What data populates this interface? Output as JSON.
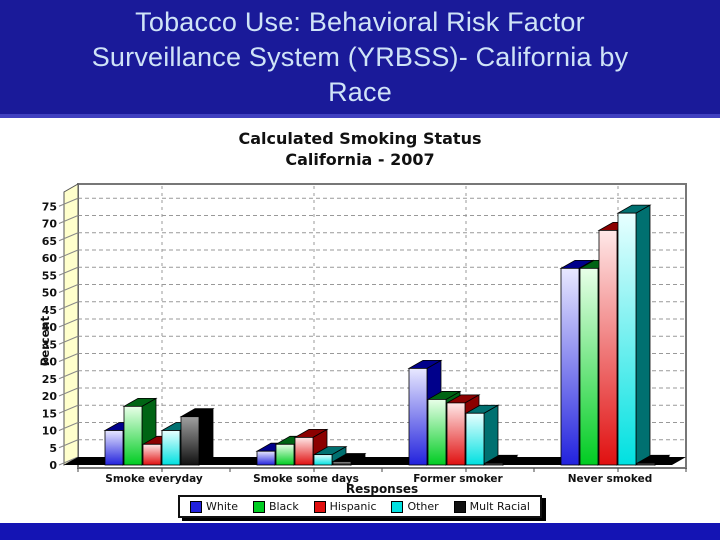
{
  "slide": {
    "title_lines": [
      "Tobacco Use: Behavioral Risk Factor",
      "Surveillance System (YRBSS)- California by",
      "Race"
    ],
    "colors": {
      "band": "#1a1a99",
      "band_edge": "#4040c0",
      "title_text": "#cfe3f7",
      "footer_bar": "#1414b4"
    }
  },
  "chart_data": {
    "type": "bar",
    "style": "3d-column",
    "title": "Calculated Smoking Status",
    "subtitle": "California - 2007",
    "xlabel": "Responses",
    "ylabel": "Percent",
    "ylim": [
      0,
      75
    ],
    "ytick_step": 5,
    "grid": true,
    "legend_position": "bottom",
    "wall_color": "#ffffcc",
    "categories": [
      "Smoke everyday",
      "Smoke some days",
      "Former smoker",
      "Never smoked"
    ],
    "series": [
      {
        "name": "White",
        "color": "#2222dd",
        "light": "#e8e8ff",
        "dark": "#00008b",
        "values": [
          10,
          4,
          28,
          57
        ]
      },
      {
        "name": "Black",
        "color": "#00cc22",
        "light": "#e8ffe8",
        "dark": "#006414",
        "values": [
          17,
          6,
          19,
          57
        ]
      },
      {
        "name": "Hispanic",
        "color": "#e01010",
        "light": "#ffe8e8",
        "dark": "#8b0000",
        "values": [
          6,
          8,
          18,
          68
        ]
      },
      {
        "name": "Other",
        "color": "#00e0e0",
        "light": "#e8ffff",
        "dark": "#007070",
        "values": [
          10,
          3,
          15,
          73
        ]
      },
      {
        "name": "Mult Racial",
        "color": "#111111",
        "light": "#a0a0a0",
        "dark": "#000000",
        "values": [
          14,
          1,
          0.5,
          0.5
        ]
      }
    ]
  }
}
